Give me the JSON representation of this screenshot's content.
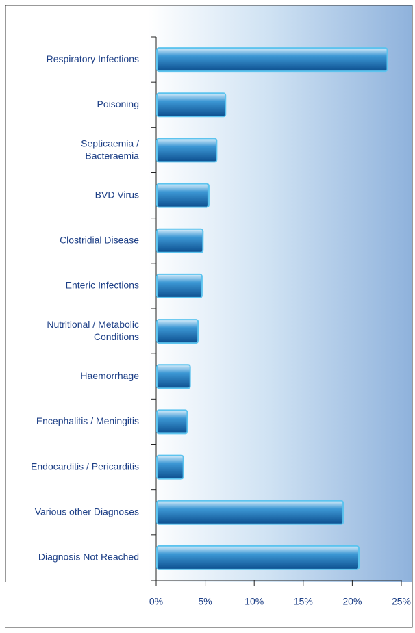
{
  "chart_data": {
    "type": "barh",
    "categories": [
      "Respiratory Infections",
      "Poisoning",
      "Septicaemia /\nBacteraemia",
      "BVD Virus",
      "Clostridial Disease",
      "Enteric Infections",
      "Nutritional / Metabolic\nConditions",
      "Haemorrhage",
      "Encephalitis / Meningitis",
      "Endocarditis / Pericarditis",
      "Various other Diagnoses",
      "Diagnosis Not Reached"
    ],
    "values": [
      23.5,
      7.0,
      6.1,
      5.3,
      4.7,
      4.6,
      4.2,
      3.4,
      3.1,
      2.7,
      19.0,
      20.6
    ],
    "color": "#1a6fb5",
    "xlim": [
      0,
      25
    ],
    "xticks": [
      {
        "value": 0,
        "label": "0%"
      },
      {
        "value": 5,
        "label": "5%"
      },
      {
        "value": 10,
        "label": "10%"
      },
      {
        "value": 15,
        "label": "15%"
      },
      {
        "value": 20,
        "label": "20%"
      },
      {
        "value": 25,
        "label": "25%"
      }
    ]
  }
}
